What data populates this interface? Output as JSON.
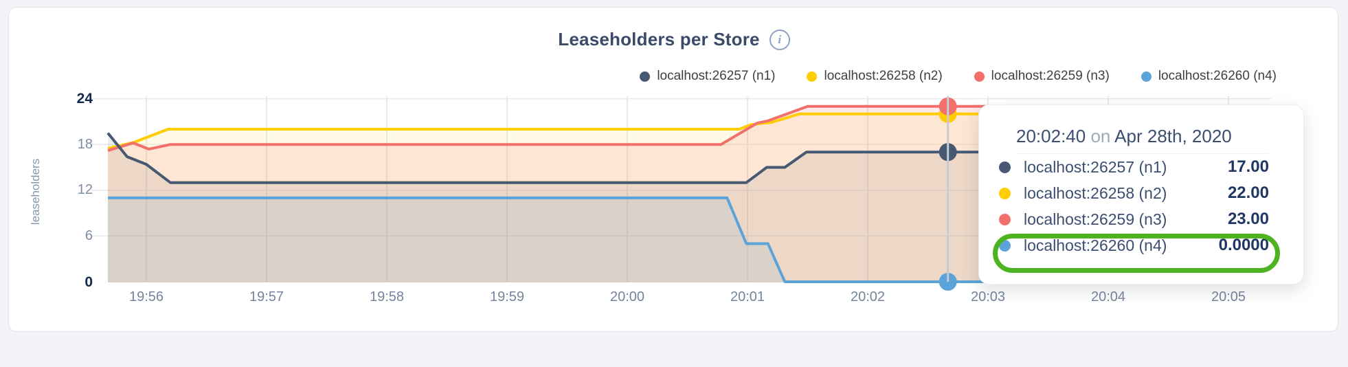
{
  "header": {
    "title": "Leaseholders per Store",
    "info_icon_glyph": "i"
  },
  "legend": {
    "items": [
      {
        "label": "localhost:26257 (n1)",
        "color": "#475872"
      },
      {
        "label": "localhost:26258 (n2)",
        "color": "#ffcd02"
      },
      {
        "label": "localhost:26259 (n3)",
        "color": "#f1706c"
      },
      {
        "label": "localhost:26260 (n4)",
        "color": "#5ba3d9"
      }
    ]
  },
  "y_axis": {
    "label": "leaseholders",
    "ticks": [
      "24",
      "18",
      "12",
      "6",
      "0"
    ]
  },
  "x_axis": {
    "ticks": [
      "19:56",
      "19:57",
      "19:58",
      "19:59",
      "20:00",
      "20:01",
      "20:02",
      "20:03",
      "20:04",
      "20:05"
    ]
  },
  "tooltip": {
    "time": "20:02:40",
    "connector": "on",
    "date": "Apr 28th, 2020",
    "highlight_color": "#4db321",
    "rows": [
      {
        "name": "localhost:26257 (n1)",
        "value": "17.00",
        "color": "#475872",
        "highlighted": false
      },
      {
        "name": "localhost:26258 (n2)",
        "value": "22.00",
        "color": "#ffcd02",
        "highlighted": false
      },
      {
        "name": "localhost:26259 (n3)",
        "value": "23.00",
        "color": "#f1706c",
        "highlighted": false
      },
      {
        "name": "localhost:26260 (n4)",
        "value": "0.0000",
        "color": "#5ba3d9",
        "highlighted": true
      }
    ]
  },
  "chart_data": {
    "type": "area",
    "title": "Leaseholders per Store",
    "ylabel": "leaseholders",
    "ylim": [
      0,
      24
    ],
    "y_gridlines": [
      6,
      12,
      18,
      24
    ],
    "x_tick_labels": [
      "19:56",
      "19:57",
      "19:58",
      "19:59",
      "20:00",
      "20:01",
      "20:02",
      "20:03",
      "20:04",
      "20:05"
    ],
    "x_tick_minutes": [
      0,
      1,
      2,
      3,
      4,
      5,
      6,
      7,
      8,
      9
    ],
    "x_unit": "minutes since 19:56",
    "grid_color": "#e8eaef",
    "legend_position": "top-right",
    "series": [
      {
        "id": "n1",
        "name": "localhost:26257 (n1)",
        "color": "#475872",
        "fill_opacity": 0.11,
        "points": [
          [
            -0.32,
            19.5
          ],
          [
            -0.16,
            16.4
          ],
          [
            0.0,
            15.4
          ],
          [
            0.2,
            13
          ],
          [
            4.99,
            13
          ],
          [
            5.16,
            15
          ],
          [
            5.31,
            15
          ],
          [
            5.49,
            17
          ],
          [
            9.31,
            17
          ]
        ]
      },
      {
        "id": "n2",
        "name": "localhost:26258 (n2)",
        "color": "#ffcd02",
        "fill_opacity": 0.1,
        "points": [
          [
            -0.32,
            17.5
          ],
          [
            -0.1,
            18.3
          ],
          [
            0.18,
            20
          ],
          [
            4.93,
            20
          ],
          [
            5.03,
            20.6
          ],
          [
            5.2,
            20.9
          ],
          [
            5.43,
            22
          ],
          [
            9.31,
            22
          ]
        ]
      },
      {
        "id": "n3",
        "name": "localhost:26259 (n3)",
        "color": "#f1706c",
        "fill_opacity": 0.14,
        "points": [
          [
            -0.32,
            17.2
          ],
          [
            -0.11,
            18.2
          ],
          [
            0.02,
            17.4
          ],
          [
            0.2,
            18
          ],
          [
            4.78,
            18
          ],
          [
            5.08,
            20.8
          ],
          [
            5.17,
            21.1
          ],
          [
            5.5,
            23
          ],
          [
            9.31,
            23
          ]
        ]
      },
      {
        "id": "n4",
        "name": "localhost:26260 (n4)",
        "color": "#5ba3d9",
        "fill_opacity": 0.13,
        "points": [
          [
            -0.32,
            11
          ],
          [
            4.83,
            11
          ],
          [
            4.99,
            5
          ],
          [
            5.17,
            5
          ],
          [
            5.31,
            0
          ],
          [
            9.31,
            0
          ]
        ]
      }
    ],
    "line_order": [
      "n2",
      "n3",
      "n4",
      "n1"
    ],
    "hover": {
      "minutes": 6.667,
      "time": "20:02:40",
      "line_color": "#c6ccd6",
      "points": [
        {
          "id": "n4",
          "value": 0
        },
        {
          "id": "n1",
          "value": 17
        },
        {
          "id": "n2",
          "value": 22
        },
        {
          "id": "n3",
          "value": 23
        }
      ]
    }
  }
}
